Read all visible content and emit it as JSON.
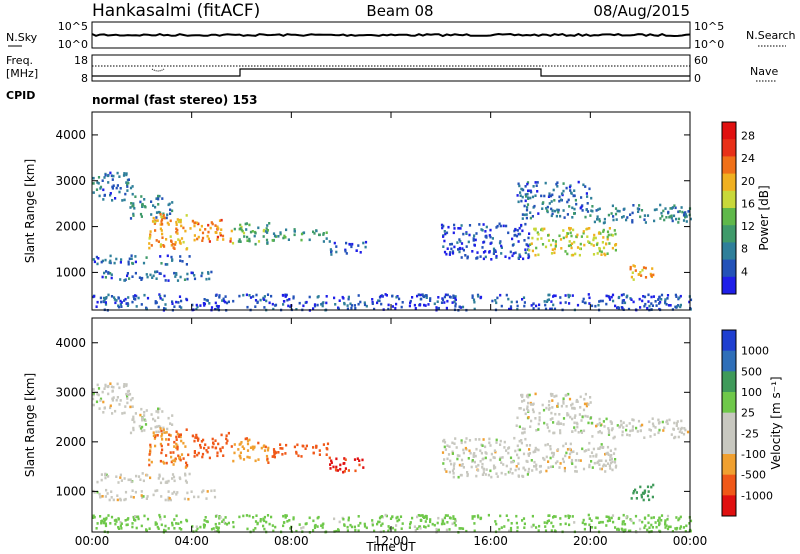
{
  "header": {
    "station": "Hankasalmi (fitACF)",
    "beam": "Beam 08",
    "date": "08/Aug/2015"
  },
  "side_labels": {
    "nsky": "N.Sky",
    "nsearch": "N.Search",
    "freq": "Freq.",
    "freq_unit": "[MHz]",
    "nave": "Nave",
    "cpid": "CPID"
  },
  "cpid_text": "normal (fast stereo) 153",
  "noise_axis": {
    "top": "10^5",
    "bottom": "10^0"
  },
  "freq_axis": {
    "top": "18",
    "bottom": "8"
  },
  "nave_axis": {
    "top": "60",
    "bottom": "0"
  },
  "colors": {
    "power": [
      "#1f1fe8",
      "#2352b8",
      "#2f7f9a",
      "#3f9a6a",
      "#5fb84a",
      "#c8d83a",
      "#f0b020",
      "#f07018",
      "#e83018",
      "#e01010"
    ],
    "velocity": [
      "#e01010",
      "#f05818",
      "#f0a030",
      "#c8c8c0",
      "#c8c8c0",
      "#6fc84a",
      "#3f9a5a",
      "#2f6fb8",
      "#1f3fd0"
    ]
  },
  "colorbar_power": {
    "label": "Power [dB]",
    "ticks": [
      "4",
      "8",
      "12",
      "16",
      "20",
      "24",
      "28"
    ]
  },
  "colorbar_velocity": {
    "label": "Velocity [m s⁻¹]",
    "ticks": [
      "1000",
      "500",
      "100",
      "25",
      "-25",
      "-100",
      "-500",
      "-1000"
    ]
  },
  "chart_data": [
    {
      "type": "heatmap",
      "name": "power",
      "ylabel": "Slant Range [km]",
      "xlabel": "Time UT",
      "ylim": [
        180,
        4500
      ],
      "xlim": [
        0,
        24
      ],
      "yticks": [
        "1000",
        "2000",
        "3000",
        "4000"
      ],
      "xticks": [
        "00:00",
        "04:00",
        "08:00",
        "12:00",
        "16:00",
        "20:00",
        "00:00"
      ],
      "regions": [
        {
          "x0": 0.0,
          "x1": 1.6,
          "y0": 2600,
          "y1": 3200,
          "v": 8
        },
        {
          "x0": 1.5,
          "x1": 3.2,
          "y0": 2200,
          "y1": 2700,
          "v": 10
        },
        {
          "x0": 2.2,
          "x1": 3.8,
          "y0": 1500,
          "y1": 2300,
          "v": 22
        },
        {
          "x0": 3.8,
          "x1": 5.6,
          "y0": 1700,
          "y1": 2200,
          "v": 24
        },
        {
          "x0": 5.6,
          "x1": 7.2,
          "y0": 1600,
          "y1": 2100,
          "v": 14
        },
        {
          "x0": 7.2,
          "x1": 9.5,
          "y0": 1700,
          "y1": 2000,
          "v": 12
        },
        {
          "x0": 9.5,
          "x1": 11.0,
          "y0": 1400,
          "y1": 1700,
          "v": 6
        },
        {
          "x0": 0.0,
          "x1": 4.0,
          "y0": 1200,
          "y1": 1400,
          "v": 8
        },
        {
          "x0": 0.0,
          "x1": 5.0,
          "y0": 850,
          "y1": 1050,
          "v": 8
        },
        {
          "x0": 0.0,
          "x1": 24.0,
          "y0": 200,
          "y1": 550,
          "v": 6
        },
        {
          "x0": 14.0,
          "x1": 17.5,
          "y0": 1300,
          "y1": 2100,
          "v": 6
        },
        {
          "x0": 17.0,
          "x1": 20.0,
          "y0": 2200,
          "y1": 3000,
          "v": 8
        },
        {
          "x0": 17.5,
          "x1": 21.0,
          "y0": 1400,
          "y1": 2000,
          "v": 18
        },
        {
          "x0": 20.0,
          "x1": 24.0,
          "y0": 2100,
          "y1": 2500,
          "v": 10
        },
        {
          "x0": 21.5,
          "x1": 22.5,
          "y0": 850,
          "y1": 1200,
          "v": 22
        }
      ]
    },
    {
      "type": "heatmap",
      "name": "velocity",
      "ylabel": "Slant Range [km]",
      "xlabel": "Time UT",
      "ylim": [
        180,
        4500
      ],
      "xlim": [
        0,
        24
      ],
      "yticks": [
        "1000",
        "2000",
        "3000",
        "4000"
      ],
      "xticks": [
        "00:00",
        "04:00",
        "08:00",
        "12:00",
        "16:00",
        "20:00",
        "00:00"
      ],
      "regions": [
        {
          "x0": 0.0,
          "x1": 1.6,
          "y0": 2600,
          "y1": 3200,
          "v": 0
        },
        {
          "x0": 1.5,
          "x1": 3.2,
          "y0": 2200,
          "y1": 2700,
          "v": 0
        },
        {
          "x0": 2.2,
          "x1": 3.8,
          "y0": 1500,
          "y1": 2300,
          "v": -100
        },
        {
          "x0": 3.8,
          "x1": 5.6,
          "y0": 1700,
          "y1": 2200,
          "v": -150
        },
        {
          "x0": 5.6,
          "x1": 7.2,
          "y0": 1600,
          "y1": 2100,
          "v": -80
        },
        {
          "x0": 7.2,
          "x1": 9.5,
          "y0": 1700,
          "y1": 2000,
          "v": -200
        },
        {
          "x0": 9.5,
          "x1": 11.0,
          "y0": 1400,
          "y1": 1700,
          "v": -600
        },
        {
          "x0": 0.0,
          "x1": 4.0,
          "y0": 1200,
          "y1": 1400,
          "v": 0
        },
        {
          "x0": 0.0,
          "x1": 5.0,
          "y0": 850,
          "y1": 1050,
          "v": 0
        },
        {
          "x0": 0.0,
          "x1": 24.0,
          "y0": 200,
          "y1": 550,
          "v": 50
        },
        {
          "x0": 14.0,
          "x1": 17.5,
          "y0": 1300,
          "y1": 2100,
          "v": 0
        },
        {
          "x0": 17.0,
          "x1": 20.0,
          "y0": 2200,
          "y1": 3000,
          "v": 0
        },
        {
          "x0": 17.5,
          "x1": 21.0,
          "y0": 1400,
          "y1": 2000,
          "v": 0
        },
        {
          "x0": 20.0,
          "x1": 24.0,
          "y0": 2100,
          "y1": 2500,
          "v": 0
        },
        {
          "x0": 21.5,
          "x1": 22.5,
          "y0": 850,
          "y1": 1200,
          "v": 300
        }
      ]
    }
  ]
}
